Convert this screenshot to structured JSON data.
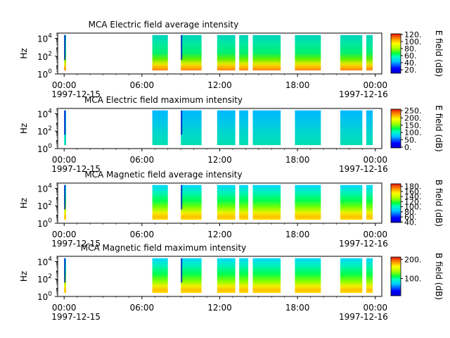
{
  "chart_data": [
    {
      "type": "heatmap",
      "title": "MCA  Electric field average intensity",
      "ylabel": "Hz",
      "y_scale": "log",
      "ylim": [
        1,
        40000
      ],
      "y_ticks": [
        {
          "exp": "0",
          "value": 1
        },
        {
          "exp": "2",
          "value": 100
        },
        {
          "exp": "4",
          "value": 10000
        }
      ],
      "xlim_hours": [
        -0.5,
        24.5
      ],
      "x_ticks": [
        "00:00",
        "06:00",
        "12:00",
        "18:00",
        "00:00"
      ],
      "x_dates": [
        "1997-12-15",
        "1997-12-16"
      ],
      "colorbar_label": "E field (dB)",
      "colorbar_ticks": [
        "20.",
        "40.",
        "60.",
        "80.",
        "100.",
        "120."
      ],
      "colorbar_range": [
        10,
        122
      ],
      "data_intervals_hours": [
        [
          0.0,
          0.15
        ],
        [
          6.8,
          8.0
        ],
        [
          9.0,
          10.6
        ],
        [
          11.8,
          13.2
        ],
        [
          13.5,
          14.2
        ],
        [
          14.55,
          16.7
        ],
        [
          17.8,
          19.8
        ],
        [
          21.3,
          23.0
        ],
        [
          23.3,
          23.8
        ]
      ],
      "gradient": "average"
    },
    {
      "type": "heatmap",
      "title": "MCA  Electric field maximum intensity",
      "ylabel": "Hz",
      "y_scale": "log",
      "ylim": [
        1,
        40000
      ],
      "y_ticks": [
        {
          "exp": "0",
          "value": 1
        },
        {
          "exp": "2",
          "value": 100
        },
        {
          "exp": "4",
          "value": 10000
        }
      ],
      "xlim_hours": [
        -0.5,
        24.5
      ],
      "x_ticks": [
        "00:00",
        "06:00",
        "12:00",
        "18:00",
        "00:00"
      ],
      "x_dates": [
        "1997-12-15",
        "1997-12-16"
      ],
      "colorbar_label": "E field (dB)",
      "colorbar_ticks": [
        "0.",
        "50.",
        "100.",
        "150.",
        "200.",
        "250."
      ],
      "colorbar_range": [
        -5,
        260
      ],
      "data_intervals_hours": [
        [
          0.0,
          0.15
        ],
        [
          6.8,
          8.0
        ],
        [
          9.0,
          10.6
        ],
        [
          11.8,
          13.2
        ],
        [
          13.5,
          14.2
        ],
        [
          14.55,
          16.7
        ],
        [
          17.8,
          19.8
        ],
        [
          21.3,
          23.0
        ],
        [
          23.3,
          23.8
        ]
      ],
      "gradient": "maximum"
    },
    {
      "type": "heatmap",
      "title": "MCA  Magnetic field average intensity",
      "ylabel": "Hz",
      "y_scale": "log",
      "ylim": [
        1,
        40000
      ],
      "y_ticks": [
        {
          "exp": "0",
          "value": 1
        },
        {
          "exp": "2",
          "value": 100
        },
        {
          "exp": "4",
          "value": 10000
        }
      ],
      "xlim_hours": [
        -0.5,
        24.5
      ],
      "x_ticks": [
        "00:00",
        "06:00",
        "12:00",
        "18:00",
        "00:00"
      ],
      "x_dates": [
        "1997-12-15",
        "1997-12-16"
      ],
      "colorbar_label": "B field (dB)",
      "colorbar_ticks": [
        "40.",
        "60.",
        "80.",
        "100.",
        "120.",
        "140.",
        "160.",
        "180."
      ],
      "colorbar_range": [
        38,
        190
      ],
      "data_intervals_hours": [
        [
          0.0,
          0.15
        ],
        [
          6.8,
          8.0
        ],
        [
          9.0,
          10.6
        ],
        [
          11.8,
          13.2
        ],
        [
          13.5,
          14.2
        ],
        [
          14.55,
          16.7
        ],
        [
          17.8,
          19.8
        ],
        [
          21.3,
          23.0
        ],
        [
          23.3,
          23.8
        ]
      ],
      "gradient": "magnetic"
    },
    {
      "type": "heatmap",
      "title": "MCA  Magnetic field maximum intensity",
      "ylabel": "Hz",
      "y_scale": "log",
      "ylim": [
        1,
        40000
      ],
      "y_ticks": [
        {
          "exp": "0",
          "value": 1
        },
        {
          "exp": "2",
          "value": 100
        },
        {
          "exp": "4",
          "value": 10000
        }
      ],
      "xlim_hours": [
        -0.5,
        24.5
      ],
      "x_ticks": [
        "00:00",
        "06:00",
        "12:00",
        "18:00",
        "00:00"
      ],
      "x_dates": [
        "1997-12-15",
        "1997-12-16"
      ],
      "colorbar_label": "B field (dB)",
      "colorbar_ticks": [
        "100.",
        "200."
      ],
      "colorbar_range": [
        10,
        212
      ],
      "data_intervals_hours": [
        [
          0.0,
          0.15
        ],
        [
          6.8,
          8.0
        ],
        [
          9.0,
          10.6
        ],
        [
          11.8,
          13.2
        ],
        [
          13.5,
          14.2
        ],
        [
          14.55,
          16.7
        ],
        [
          17.8,
          19.8
        ],
        [
          21.3,
          23.0
        ],
        [
          23.3,
          23.8
        ]
      ],
      "gradient": "magnetic"
    }
  ]
}
